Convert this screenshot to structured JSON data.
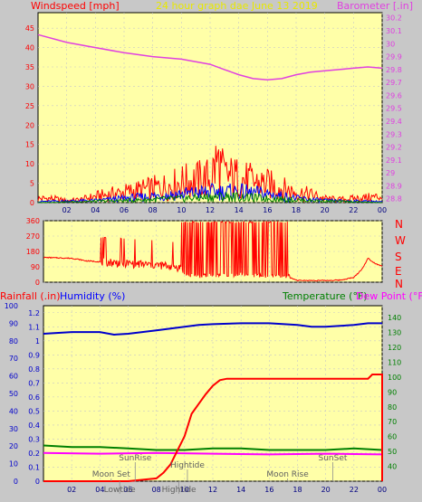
{
  "chart_data": [
    {
      "type": "line",
      "title": "24 hour graph dae  June 13 2019",
      "y_left_label": "Windspeed [mph]",
      "y_right_label": "Barometer [.in]",
      "x_ticks": [
        "02",
        "04",
        "06",
        "08",
        "10",
        "12",
        "14",
        "16",
        "18",
        "20",
        "22",
        "00"
      ],
      "y_left_ticks": [
        "0",
        "5",
        "10",
        "15",
        "20",
        "25",
        "30",
        "35",
        "40",
        "45"
      ],
      "y_left_range": [
        0,
        49
      ],
      "y_right_ticks": [
        "28.8",
        "28.9",
        "29",
        "29.1",
        "29.2",
        "29.3",
        "29.4",
        "29.5",
        "29.6",
        "29.7",
        "29.8",
        "29.9",
        "30",
        "30.1",
        "30.2"
      ],
      "y_right_range": [
        28.77,
        30.24
      ],
      "barometer": {
        "color": "#e040e0",
        "points": [
          [
            0,
            30.07
          ],
          [
            2,
            30.01
          ],
          [
            4,
            29.97
          ],
          [
            6,
            29.93
          ],
          [
            8,
            29.9
          ],
          [
            10,
            29.88
          ],
          [
            12,
            29.84
          ],
          [
            13,
            29.8
          ],
          [
            14,
            29.76
          ],
          [
            15,
            29.73
          ],
          [
            16,
            29.72
          ],
          [
            17,
            29.73
          ],
          [
            18,
            29.76
          ],
          [
            19,
            29.78
          ],
          [
            20,
            29.79
          ],
          [
            21,
            29.8
          ],
          [
            22,
            29.81
          ],
          [
            23,
            29.82
          ],
          [
            24,
            29.81
          ]
        ]
      },
      "wind_gust_envelope": {
        "color": "#ff0000",
        "points": [
          [
            0,
            2
          ],
          [
            1,
            2
          ],
          [
            2,
            1
          ],
          [
            3,
            1.5
          ],
          [
            4,
            3
          ],
          [
            5,
            4
          ],
          [
            6,
            5
          ],
          [
            7,
            6
          ],
          [
            8,
            7
          ],
          [
            9,
            8
          ],
          [
            10,
            10
          ],
          [
            11,
            11
          ],
          [
            12,
            12
          ],
          [
            12.5,
            20
          ],
          [
            13,
            13
          ],
          [
            14,
            12
          ],
          [
            15,
            10
          ],
          [
            16,
            9
          ],
          [
            17,
            7
          ],
          [
            18,
            5
          ],
          [
            19,
            4
          ],
          [
            20,
            2
          ],
          [
            21,
            1.5
          ],
          [
            22,
            2
          ],
          [
            23,
            2.5
          ],
          [
            24,
            3
          ]
        ]
      },
      "wind_average_envelope": {
        "color": "#0000ff",
        "points": [
          [
            0,
            0.5
          ],
          [
            4,
            1
          ],
          [
            6,
            2
          ],
          [
            8,
            3
          ],
          [
            10,
            4
          ],
          [
            12,
            5
          ],
          [
            14,
            5
          ],
          [
            16,
            4
          ],
          [
            18,
            2
          ],
          [
            20,
            1
          ],
          [
            24,
            0.5
          ]
        ]
      },
      "wind_low_envelope": {
        "color": "#008000",
        "points": [
          [
            0,
            0
          ],
          [
            6,
            1
          ],
          [
            10,
            2
          ],
          [
            13,
            3
          ],
          [
            16,
            2
          ],
          [
            19,
            1
          ],
          [
            24,
            0
          ]
        ]
      }
    },
    {
      "type": "line",
      "title": "",
      "y_left_label": "",
      "y_right_letters": [
        "N",
        "W",
        "S",
        "E",
        "N"
      ],
      "x_ticks": [
        "02",
        "04",
        "06",
        "08",
        "10",
        "12",
        "14",
        "16",
        "18",
        "20",
        "22",
        "00"
      ],
      "y_left_ticks": [
        "0",
        "90",
        "180",
        "270",
        "360"
      ],
      "y_left_range": [
        0,
        360
      ],
      "wind_direction": {
        "color": "#ff0000",
        "points": [
          [
            0,
            145
          ],
          [
            2,
            140
          ],
          [
            2.4,
            135
          ],
          [
            3,
            125
          ],
          [
            4,
            120
          ],
          [
            5,
            115
          ],
          [
            6,
            110
          ],
          [
            7,
            105
          ],
          [
            8,
            100
          ],
          [
            9,
            95
          ],
          [
            9.7,
            85
          ],
          [
            10,
            30
          ],
          [
            11,
            25
          ],
          [
            12,
            28
          ],
          [
            13,
            30
          ],
          [
            14,
            35
          ],
          [
            15,
            28
          ],
          [
            16,
            25
          ],
          [
            17,
            20
          ],
          [
            17.5,
            26
          ],
          [
            18,
            10
          ],
          [
            19,
            10
          ],
          [
            20,
            10
          ],
          [
            21,
            12
          ],
          [
            22,
            28
          ],
          [
            22.6,
            80
          ],
          [
            23,
            140
          ],
          [
            23.5,
            110
          ],
          [
            24,
            95
          ]
        ]
      }
    },
    {
      "type": "line",
      "title": "",
      "y_left_label": "Rainfall (.in)",
      "y_left2_label": "Humidity (%)",
      "y_right_label": "Temperature (°F)",
      "y_right2_label": "Dew Point (°F)",
      "x_ticks": [
        "02",
        "04",
        "06",
        "08",
        "10",
        "12",
        "14",
        "16",
        "18",
        "20",
        "22",
        "00"
      ],
      "rain_ticks": [
        "0",
        "0.1",
        "0.2",
        "0.3",
        "0.4",
        "0.5",
        "0.6",
        "0.7",
        "0.8",
        "0.9",
        "1",
        "1.1",
        "1.2"
      ],
      "rain_range": [
        0,
        1.25
      ],
      "humidity_ticks": [
        "0",
        "10",
        "20",
        "30",
        "40",
        "50",
        "60",
        "70",
        "80",
        "90",
        "100"
      ],
      "humidity_range": [
        0,
        100
      ],
      "temp_ticks": [
        "40",
        "50",
        "60",
        "70",
        "80",
        "90",
        "100",
        "110",
        "120",
        "130",
        "140"
      ],
      "temp_range": [
        30,
        148
      ],
      "humidity": {
        "color": "#0000cc",
        "points": [
          [
            0,
            84
          ],
          [
            2,
            85
          ],
          [
            4,
            85
          ],
          [
            5,
            83.5
          ],
          [
            6,
            84
          ],
          [
            7,
            85
          ],
          [
            8,
            86
          ],
          [
            9,
            87
          ],
          [
            10,
            88
          ],
          [
            11,
            89
          ],
          [
            12,
            89.5
          ],
          [
            14,
            90
          ],
          [
            16,
            90
          ],
          [
            18,
            89
          ],
          [
            19,
            88
          ],
          [
            20,
            88
          ],
          [
            21,
            88.5
          ],
          [
            22,
            89
          ],
          [
            23,
            90
          ],
          [
            24,
            90
          ]
        ]
      },
      "rainfall": {
        "color": "#ff0000",
        "points": [
          [
            0,
            0
          ],
          [
            6,
            0
          ],
          [
            8,
            0.02
          ],
          [
            8.5,
            0.06
          ],
          [
            9,
            0.12
          ],
          [
            9.5,
            0.22
          ],
          [
            10,
            0.32
          ],
          [
            10.5,
            0.48
          ],
          [
            11,
            0.55
          ],
          [
            11.5,
            0.62
          ],
          [
            12,
            0.68
          ],
          [
            12.5,
            0.72
          ],
          [
            13,
            0.73
          ],
          [
            18,
            0.73
          ],
          [
            23,
            0.73
          ],
          [
            23.3,
            0.76
          ],
          [
            24,
            0.76
          ],
          [
            24,
            0
          ]
        ]
      },
      "temperature": {
        "color": "#008000",
        "points": [
          [
            0,
            54
          ],
          [
            2,
            53
          ],
          [
            4,
            53
          ],
          [
            6,
            52
          ],
          [
            8,
            51
          ],
          [
            10,
            51
          ],
          [
            12,
            52
          ],
          [
            14,
            52
          ],
          [
            16,
            51
          ],
          [
            18,
            51
          ],
          [
            20,
            51
          ],
          [
            22,
            52
          ],
          [
            24,
            51
          ]
        ]
      },
      "dew_point": {
        "color": "#ff00ff",
        "points": [
          [
            0,
            49
          ],
          [
            4,
            48.5
          ],
          [
            8,
            49
          ],
          [
            12,
            48.5
          ],
          [
            16,
            48
          ],
          [
            20,
            48.5
          ],
          [
            24,
            48
          ]
        ]
      },
      "annotations": [
        {
          "label": "SunRise",
          "x": 6.5
        },
        {
          "label": "Moon Set",
          "x": 4.8
        },
        {
          "label": "Lowtide",
          "x": 5.4
        },
        {
          "label": "Hightide",
          "x": 10.2
        },
        {
          "label": "Hightide",
          "x": 9.6
        },
        {
          "label": "Moon Rise",
          "x": 17.3
        },
        {
          "label": "SunSet",
          "x": 20.5
        }
      ]
    }
  ]
}
